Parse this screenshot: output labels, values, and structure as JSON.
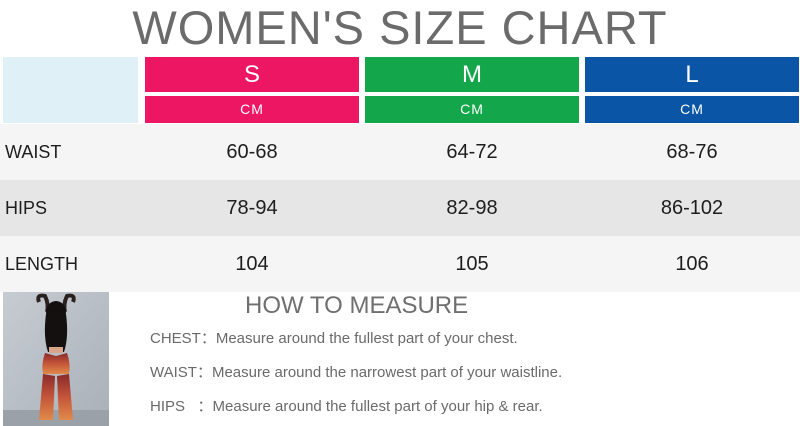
{
  "title": "WOMEN'S SIZE CHART",
  "sizes": [
    {
      "label": "S",
      "unit": "CM",
      "color": "#ec1663"
    },
    {
      "label": "M",
      "unit": "CM",
      "color": "#14a64a"
    },
    {
      "label": "L",
      "unit": "CM",
      "color": "#0b55a6"
    }
  ],
  "rows": [
    {
      "label": "WAIST",
      "values": [
        "60-68",
        "64-72",
        "68-76"
      ]
    },
    {
      "label": "HIPS",
      "values": [
        "78-94",
        "82-98",
        "86-102"
      ]
    },
    {
      "label": "LENGTH",
      "values": [
        "104",
        "105",
        "106"
      ]
    }
  ],
  "row_colors": [
    "#f5f5f5",
    "#e6e6e6",
    "#f5f5f5"
  ],
  "how_to_measure": {
    "title": "HOW TO MEASURE",
    "items": [
      {
        "key": "CHEST：",
        "text": "Measure around the fullest part of your chest."
      },
      {
        "key": "WAIST：",
        "text": "Measure around the narrowest part of your waistline."
      },
      {
        "key": "HIPS   ：",
        "text": "Measure around the fullest part of your hip & rear."
      }
    ]
  },
  "photo_icon": "model-back-view-photo"
}
